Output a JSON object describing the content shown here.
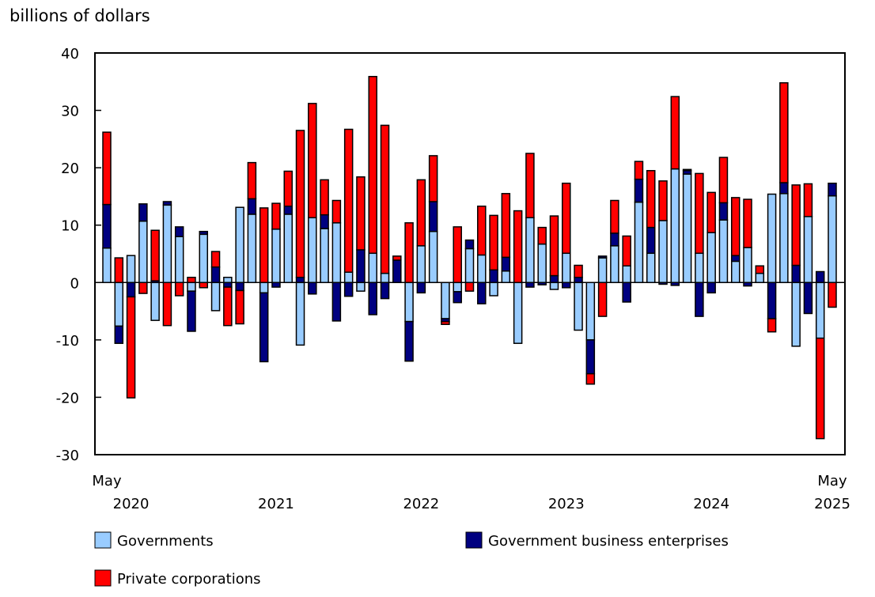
{
  "chart_data": {
    "type": "bar",
    "stacked": true,
    "ylabel": "billions of dollars",
    "ylim": [
      -30,
      40
    ],
    "yticks": [
      40,
      30,
      20,
      10,
      0,
      -10,
      -20,
      -30
    ],
    "grid": false,
    "legend_placement": "bottom",
    "x_start_label": {
      "month": "May",
      "year": "2020"
    },
    "x_end_label": {
      "month": "May",
      "year": "2025"
    },
    "year_labels": [
      "2020",
      "2021",
      "2022",
      "2023",
      "2024",
      "2025"
    ],
    "categories_range": "May 2020 to May 2025, monthly",
    "series": [
      {
        "name": "Governments",
        "color": "#99ccff",
        "values": [
          6.0,
          -7.6,
          4.7,
          10.7,
          -6.6,
          13.5,
          8.0,
          -1.5,
          8.4,
          -4.9,
          0.9,
          13.1,
          11.9,
          -1.8,
          9.3,
          11.9,
          -10.9,
          11.3,
          9.4,
          10.4,
          1.8,
          -1.5,
          5.1,
          1.6,
          0,
          -6.8,
          6.4,
          8.9,
          -6.3,
          -1.6,
          5.9,
          4.8,
          -2.3,
          2.0,
          -10.6,
          11.3,
          6.7,
          -1.2,
          5.1,
          -8.3,
          -10.0,
          4.3,
          6.4,
          2.9,
          14.0,
          5.1,
          10.8,
          19.8,
          18.9,
          5.1,
          8.7,
          10.9,
          3.7,
          6.1,
          1.6,
          15.4,
          15.5,
          -11.1,
          11.5,
          -9.7,
          15.1
        ]
      },
      {
        "name": "Government business enterprises",
        "color": "#000080",
        "values": [
          7.6,
          -3.0,
          -2.5,
          3.0,
          0.3,
          0.6,
          1.7,
          -7.0,
          0.5,
          2.7,
          -0.8,
          -1.4,
          2.7,
          -12.0,
          -0.8,
          1.4,
          0.9,
          -2.0,
          2.4,
          -6.7,
          -2.4,
          5.7,
          -5.6,
          -2.8,
          3.9,
          -6.9,
          -1.8,
          5.2,
          -0.5,
          -1.9,
          1.5,
          -3.7,
          2.2,
          2.4,
          0,
          -0.8,
          -0.4,
          1.2,
          -0.9,
          0.9,
          -5.9,
          0.3,
          2.2,
          -3.4,
          4.0,
          4.5,
          -0.3,
          -0.5,
          0.6,
          -5.9,
          -1.8,
          3.0,
          1.0,
          -0.6,
          0,
          -6.3,
          1.9,
          3.0,
          -5.4,
          1.9,
          2.2
        ]
      },
      {
        "name": "Private corporations",
        "color": "#ff0000",
        "values": [
          12.6,
          4.3,
          -17.6,
          -1.9,
          8.8,
          -7.5,
          -2.3,
          0.9,
          -0.9,
          2.7,
          -6.7,
          -5.8,
          6.3,
          13.0,
          4.5,
          6.1,
          25.6,
          19.9,
          6.1,
          3.9,
          24.9,
          12.7,
          30.8,
          25.8,
          0.7,
          10.4,
          11.5,
          8.0,
          -0.5,
          9.7,
          -1.5,
          8.5,
          9.5,
          11.1,
          12.5,
          11.2,
          2.9,
          10.4,
          12.2,
          2.1,
          -1.8,
          -5.9,
          5.7,
          5.2,
          3.1,
          9.9,
          6.9,
          12.6,
          0.2,
          13.9,
          7.0,
          7.9,
          10.1,
          8.4,
          1.3,
          -2.3,
          17.4,
          14.0,
          5.7,
          -17.5,
          -4.3
        ]
      }
    ]
  }
}
